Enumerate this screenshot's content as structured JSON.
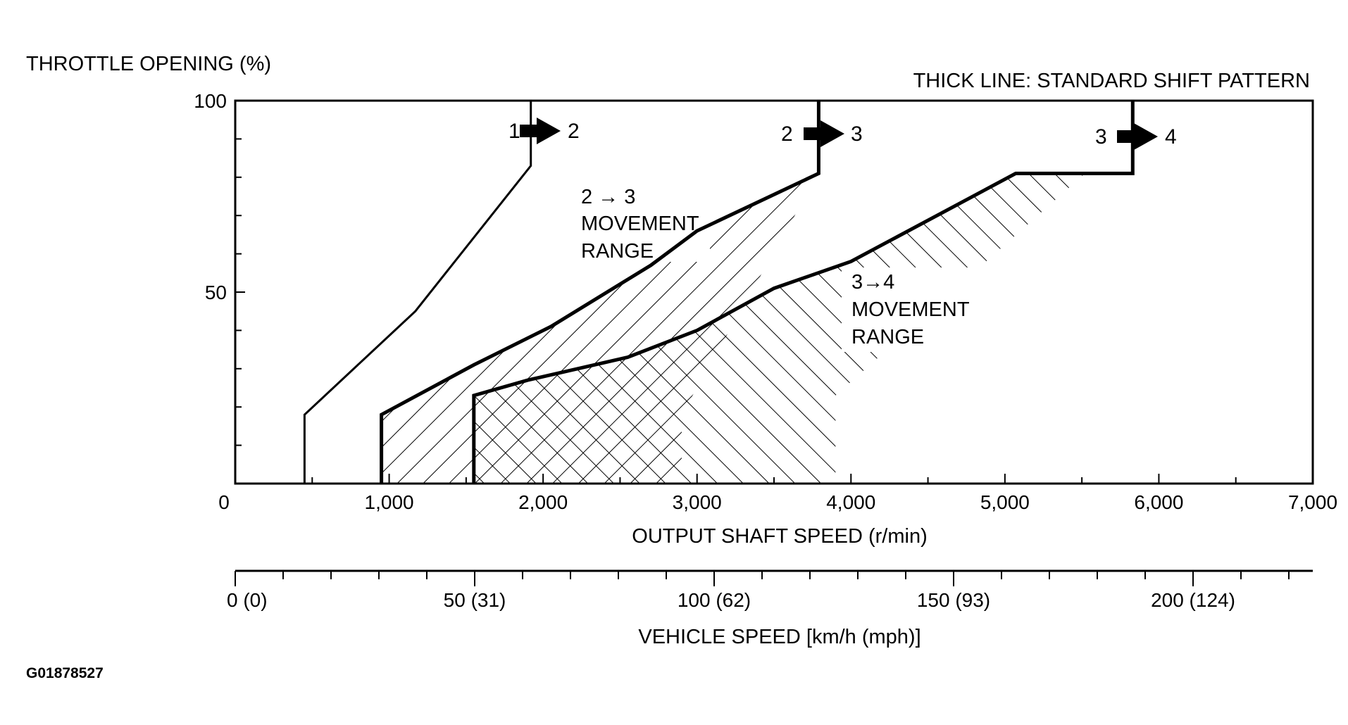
{
  "chart_data": {
    "type": "line",
    "ylabel": "THROTTLE OPENING (%)",
    "xlabel": "OUTPUT SHAFT SPEED (r/min)",
    "legend_note": "THICK LINE: STANDARD SHIFT PATTERN",
    "figure_id": "G01878527",
    "xlim": [
      0,
      7000
    ],
    "ylim": [
      0,
      100
    ],
    "x_ticks": [
      {
        "value": 0,
        "label": "0"
      },
      {
        "value": 1000,
        "label": "1,000"
      },
      {
        "value": 2000,
        "label": "2,000"
      },
      {
        "value": 3000,
        "label": "3,000"
      },
      {
        "value": 4000,
        "label": "4,000"
      },
      {
        "value": 5000,
        "label": "5,000"
      },
      {
        "value": 6000,
        "label": "6,000"
      },
      {
        "value": 7000,
        "label": "7,000"
      }
    ],
    "y_ticks": [
      {
        "value": 50,
        "label": "50"
      },
      {
        "value": 100,
        "label": "100"
      }
    ],
    "secondary_axis": {
      "label": "VEHICLE SPEED [km/h (mph)]",
      "range_kmh": [
        0,
        225
      ],
      "ticks": [
        {
          "value": 0,
          "label": "0 (0)"
        },
        {
          "value": 50,
          "label": "50 (31)"
        },
        {
          "value": 100,
          "label": "100 (62)"
        },
        {
          "value": 150,
          "label": "150 (93)"
        },
        {
          "value": 200,
          "label": "200 (124)"
        }
      ]
    },
    "series": [
      {
        "name": "1-2",
        "label_from": "1",
        "label_to": "2",
        "style": "thin",
        "points": [
          [
            450,
            0
          ],
          [
            450,
            18
          ],
          [
            1170,
            45
          ],
          [
            1920,
            83
          ],
          [
            1920,
            100
          ]
        ]
      },
      {
        "name": "2-3",
        "label_from": "2",
        "label_to": "3",
        "style": "thick",
        "points": [
          [
            950,
            0
          ],
          [
            950,
            18
          ],
          [
            1550,
            31
          ],
          [
            2050,
            41
          ],
          [
            2700,
            57
          ],
          [
            3000,
            66
          ],
          [
            3790,
            81
          ],
          [
            3790,
            100
          ]
        ]
      },
      {
        "name": "3-4",
        "label_from": "3",
        "label_to": "4",
        "style": "thick",
        "points": [
          [
            1550,
            0
          ],
          [
            1550,
            23
          ],
          [
            1900,
            27
          ],
          [
            2550,
            33
          ],
          [
            3000,
            40
          ],
          [
            3500,
            51
          ],
          [
            4000,
            58
          ],
          [
            5070,
            81
          ],
          [
            5830,
            81
          ],
          [
            5830,
            100
          ]
        ]
      }
    ],
    "regions": [
      {
        "name": "2-3-movement-range",
        "label": [
          "2 → 3",
          "MOVEMENT",
          "RANGE"
        ],
        "hatch": "backslash",
        "polygon": [
          [
            950,
            0
          ],
          [
            950,
            18
          ],
          [
            1550,
            31
          ],
          [
            2050,
            41
          ],
          [
            2700,
            57
          ],
          [
            3000,
            66
          ],
          [
            3790,
            81
          ],
          [
            2900,
            18
          ],
          [
            2900,
            0
          ]
        ]
      },
      {
        "name": "3-4-movement-range",
        "label": [
          "3→4",
          "MOVEMENT",
          "RANGE"
        ],
        "hatch": "slash",
        "polygon": [
          [
            1550,
            0
          ],
          [
            1550,
            23
          ],
          [
            1900,
            27
          ],
          [
            2550,
            33
          ],
          [
            3000,
            40
          ],
          [
            3500,
            51
          ],
          [
            4000,
            58
          ],
          [
            5070,
            81
          ],
          [
            5520,
            81
          ],
          [
            3900,
            23
          ],
          [
            3900,
            0
          ]
        ]
      }
    ]
  }
}
